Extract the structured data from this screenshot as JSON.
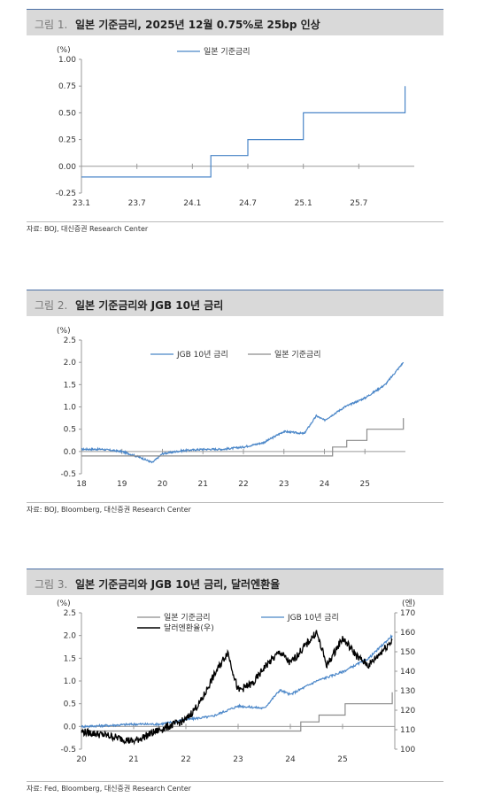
{
  "figures": [
    {
      "number": "그림 1.",
      "title": "일본 기준금리, 2025년 12월 0.75%로 25bp 인상",
      "source": "자료: BOJ, 대신증권 Research Center",
      "chart_data": {
        "type": "line",
        "y_unit": "(%)",
        "ylim": [
          -0.25,
          1.0
        ],
        "yticks": [
          "1.00",
          "0.75",
          "0.50",
          "0.25",
          "0.00",
          "-0.25"
        ],
        "xticks": [
          "23.1",
          "23.7",
          "24.1",
          "24.7",
          "25.1",
          "25.7"
        ],
        "series": [
          {
            "name": "일본 기준금리",
            "color": "#4a86c8",
            "step": true,
            "points": [
              [
                "2023.1",
                -0.1
              ],
              [
                "2024.3",
                -0.1
              ],
              [
                "2024.3",
                0.1
              ],
              [
                "2024.7",
                0.1
              ],
              [
                "2024.7",
                0.25
              ],
              [
                "2025.1",
                0.25
              ],
              [
                "2025.1",
                0.5
              ],
              [
                "2025.12",
                0.5
              ],
              [
                "2025.12",
                0.75
              ]
            ]
          }
        ]
      }
    },
    {
      "number": "그림 2.",
      "title": "일본 기준금리와 JGB 10년 금리",
      "source": "자료: BOJ, Bloomberg, 대신증권 Research Center",
      "chart_data": {
        "type": "line",
        "y_unit": "(%)",
        "ylim": [
          -0.5,
          2.5
        ],
        "yticks": [
          "2.5",
          "2.0",
          "1.5",
          "1.0",
          "0.5",
          "0.0",
          "-0.5"
        ],
        "xticks": [
          "18",
          "19",
          "20",
          "21",
          "22",
          "23",
          "24",
          "25"
        ],
        "series": [
          {
            "name": "JGB 10년 금리",
            "color": "#4a86c8",
            "points": [
              [
                2018.0,
                0.05
              ],
              [
                2018.5,
                0.05
              ],
              [
                2019.0,
                0.0
              ],
              [
                2019.5,
                -0.15
              ],
              [
                2019.75,
                -0.25
              ],
              [
                2020.0,
                -0.05
              ],
              [
                2020.5,
                0.02
              ],
              [
                2021.0,
                0.05
              ],
              [
                2021.5,
                0.05
              ],
              [
                2022.0,
                0.1
              ],
              [
                2022.5,
                0.2
              ],
              [
                2023.0,
                0.45
              ],
              [
                2023.5,
                0.4
              ],
              [
                2023.8,
                0.8
              ],
              [
                2024.0,
                0.7
              ],
              [
                2024.5,
                1.0
              ],
              [
                2025.0,
                1.2
              ],
              [
                2025.5,
                1.5
              ],
              [
                2025.95,
                2.0
              ]
            ]
          },
          {
            "name": "일본 기준금리",
            "color": "#8c8c8c",
            "step": true,
            "points": [
              [
                2018.0,
                -0.1
              ],
              [
                2024.2,
                -0.1
              ],
              [
                2024.2,
                0.1
              ],
              [
                2024.55,
                0.1
              ],
              [
                2024.55,
                0.25
              ],
              [
                2025.05,
                0.25
              ],
              [
                2025.05,
                0.5
              ],
              [
                2025.95,
                0.5
              ],
              [
                2025.95,
                0.75
              ]
            ]
          }
        ]
      }
    },
    {
      "number": "그림 3.",
      "title": "일본 기준금리와 JGB 10년 금리, 달러엔환율",
      "source": "자료: Fed, Bloomberg, 대신증권 Research Center",
      "chart_data": {
        "type": "line",
        "y_unit": "(%)",
        "y2_unit": "(엔)",
        "ylim": [
          -0.5,
          2.5
        ],
        "y2lim": [
          100,
          170
        ],
        "yticks": [
          "2.5",
          "2.0",
          "1.5",
          "1.0",
          "0.5",
          "0.0",
          "-0.5"
        ],
        "y2ticks": [
          "170",
          "160",
          "150",
          "140",
          "130",
          "120",
          "110",
          "100"
        ],
        "xticks": [
          "20",
          "21",
          "22",
          "23",
          "24",
          "25"
        ],
        "series": [
          {
            "name": "일본 기준금리",
            "color": "#8c8c8c",
            "step": true,
            "points": [
              [
                2020.0,
                -0.1
              ],
              [
                2024.2,
                -0.1
              ],
              [
                2024.2,
                0.1
              ],
              [
                2024.55,
                0.1
              ],
              [
                2024.55,
                0.25
              ],
              [
                2025.05,
                0.25
              ],
              [
                2025.05,
                0.5
              ],
              [
                2025.95,
                0.5
              ],
              [
                2025.95,
                0.75
              ]
            ]
          },
          {
            "name": "JGB 10년 금리",
            "color": "#4a86c8",
            "points": [
              [
                2020.0,
                0.0
              ],
              [
                2020.5,
                0.02
              ],
              [
                2021.0,
                0.05
              ],
              [
                2021.5,
                0.05
              ],
              [
                2022.0,
                0.15
              ],
              [
                2022.5,
                0.22
              ],
              [
                2023.0,
                0.45
              ],
              [
                2023.5,
                0.4
              ],
              [
                2023.8,
                0.8
              ],
              [
                2024.0,
                0.7
              ],
              [
                2024.5,
                1.0
              ],
              [
                2025.0,
                1.2
              ],
              [
                2025.5,
                1.5
              ],
              [
                2025.95,
                2.0
              ]
            ]
          },
          {
            "name": "달러엔환율(우)",
            "color": "#000000",
            "axis": "right",
            "points": [
              [
                2020.0,
                109
              ],
              [
                2020.5,
                107
              ],
              [
                2021.0,
                104
              ],
              [
                2021.5,
                110
              ],
              [
                2022.0,
                115
              ],
              [
                2022.3,
                125
              ],
              [
                2022.5,
                136
              ],
              [
                2022.8,
                150
              ],
              [
                2023.0,
                130
              ],
              [
                2023.3,
                134
              ],
              [
                2023.5,
                142
              ],
              [
                2023.8,
                150
              ],
              [
                2024.0,
                144
              ],
              [
                2024.5,
                160
              ],
              [
                2024.7,
                143
              ],
              [
                2025.0,
                157
              ],
              [
                2025.3,
                147
              ],
              [
                2025.5,
                143
              ],
              [
                2025.95,
                156
              ]
            ]
          }
        ]
      }
    }
  ]
}
